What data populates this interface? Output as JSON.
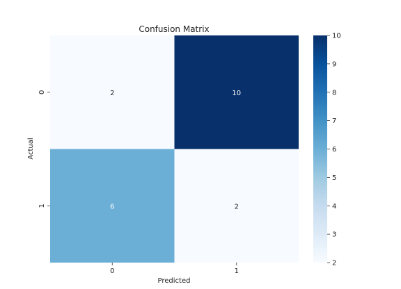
{
  "chart_data": {
    "type": "heatmap",
    "title": "Confusion Matrix",
    "xlabel": "Predicted",
    "ylabel": "Actual",
    "x_categories": [
      "0",
      "1"
    ],
    "y_categories": [
      "0",
      "1"
    ],
    "matrix": [
      [
        2,
        10
      ],
      [
        6,
        2
      ]
    ],
    "colormap": "Blues",
    "colorbar": {
      "min": 2,
      "max": 10,
      "ticks": [
        "2",
        "3",
        "4",
        "5",
        "6",
        "7",
        "8",
        "9",
        "10"
      ]
    },
    "colors": {
      "low": "#f7fbff",
      "high": "#08306b",
      "dark_text": "#262626",
      "light_text": "#ffffff"
    }
  }
}
